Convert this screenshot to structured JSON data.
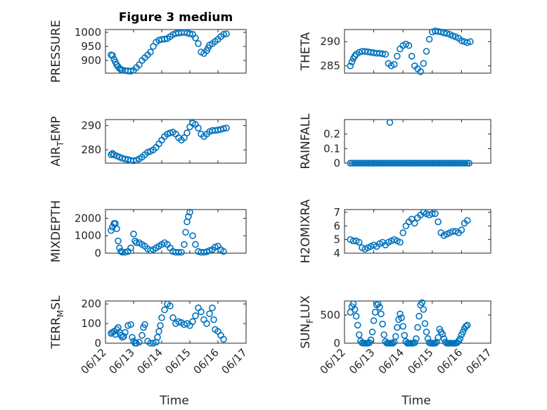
{
  "colors": {
    "marker": "#0072bd"
  },
  "xaxis": {
    "ticks": [
      {
        "t": 0,
        "label": "06/12"
      },
      {
        "t": 1,
        "label": "06/13"
      },
      {
        "t": 2,
        "label": "06/14"
      },
      {
        "t": 3,
        "label": "06/15"
      },
      {
        "t": 4,
        "label": "06/16"
      },
      {
        "t": 5,
        "label": "06/17"
      }
    ],
    "range": [
      0,
      5
    ]
  },
  "chart_data": [
    {
      "type": "scatter",
      "title": "Figure 3 medium",
      "ylabel": "PRESSURE",
      "ylabel_parts": [
        {
          "t": "PRESSURE"
        }
      ],
      "xlabel": "",
      "ylim": [
        855,
        1010
      ],
      "yticks": [
        900,
        950,
        1000
      ],
      "grid": true,
      "x": [
        0.2,
        0.25,
        0.3,
        0.35,
        0.4,
        0.45,
        0.5,
        0.55,
        0.6,
        0.7,
        0.8,
        0.9,
        1.0,
        1.1,
        1.2,
        1.3,
        1.4,
        1.5,
        1.6,
        1.7,
        1.8,
        1.9,
        2.0,
        2.1,
        2.2,
        2.3,
        2.4,
        2.5,
        2.6,
        2.7,
        2.8,
        2.9,
        3.0,
        3.1,
        3.2,
        3.3,
        3.4,
        3.5,
        3.6,
        3.65,
        3.7,
        3.8,
        3.9,
        4.0,
        4.1,
        4.2,
        4.3
      ],
      "y": [
        920,
        918,
        905,
        895,
        885,
        878,
        872,
        868,
        866,
        864,
        863,
        862,
        865,
        875,
        885,
        900,
        910,
        920,
        930,
        950,
        965,
        972,
        975,
        976,
        978,
        985,
        992,
        996,
        998,
        999,
        1000,
        998,
        995,
        993,
        980,
        960,
        930,
        925,
        935,
        945,
        955,
        960,
        968,
        975,
        985,
        993,
        995
      ]
    },
    {
      "type": "scatter",
      "title": "",
      "ylabel": "THETA",
      "ylabel_parts": [
        {
          "t": "THETA"
        }
      ],
      "xlabel": "",
      "ylim": [
        283.5,
        292.5
      ],
      "yticks": [
        285,
        290
      ],
      "grid": true,
      "x": [
        0.2,
        0.25,
        0.3,
        0.35,
        0.4,
        0.5,
        0.6,
        0.7,
        0.8,
        0.9,
        1.0,
        1.1,
        1.2,
        1.3,
        1.4,
        1.5,
        1.6,
        1.7,
        1.8,
        1.9,
        2.0,
        2.1,
        2.2,
        2.3,
        2.4,
        2.5,
        2.6,
        2.7,
        2.8,
        2.9,
        3.0,
        3.1,
        3.2,
        3.3,
        3.4,
        3.5,
        3.6,
        3.7,
        3.8,
        3.9,
        4.0,
        4.1,
        4.2,
        4.3
      ],
      "y": [
        285,
        285.8,
        286.5,
        287,
        287.4,
        287.8,
        288,
        288,
        287.9,
        287.8,
        287.7,
        287.6,
        287.6,
        287.5,
        287.4,
        285.5,
        285,
        285.3,
        287,
        288.5,
        289.2,
        289.5,
        289.2,
        287,
        285,
        284.4,
        283.8,
        285.5,
        288,
        290.5,
        292,
        292.2,
        292.1,
        292,
        291.8,
        291.7,
        291.5,
        291.2,
        291,
        290.7,
        290.2,
        290,
        289.8,
        290
      ]
    },
    {
      "type": "scatter",
      "title": "",
      "ylabel": "AIR_TEMP",
      "ylabel_parts": [
        {
          "t": "AIR"
        },
        {
          "t": "T",
          "sub": true
        },
        {
          "t": "EMP"
        }
      ],
      "xlabel": "",
      "ylim": [
        274.5,
        292.5
      ],
      "yticks": [
        280,
        290
      ],
      "grid": true,
      "x": [
        0.2,
        0.25,
        0.3,
        0.4,
        0.5,
        0.6,
        0.7,
        0.8,
        0.9,
        1.0,
        1.1,
        1.2,
        1.3,
        1.4,
        1.5,
        1.6,
        1.7,
        1.8,
        1.9,
        2.0,
        2.1,
        2.2,
        2.3,
        2.4,
        2.5,
        2.6,
        2.7,
        2.8,
        2.9,
        3.0,
        3.1,
        3.2,
        3.3,
        3.4,
        3.5,
        3.6,
        3.7,
        3.8,
        3.9,
        4.0,
        4.1,
        4.2,
        4.3
      ],
      "y": [
        278,
        278.5,
        278,
        277.5,
        277,
        276.5,
        276.2,
        276,
        275.6,
        275.5,
        275.7,
        276.3,
        277,
        278,
        279,
        279.4,
        280,
        281,
        282.5,
        284,
        285.5,
        286.5,
        287,
        287.3,
        286.5,
        285,
        284,
        285,
        287,
        289.5,
        291,
        290.5,
        289,
        286.5,
        285.5,
        286.5,
        287.5,
        288,
        288,
        288.2,
        288.4,
        288.8,
        289
      ]
    },
    {
      "type": "scatter",
      "title": "",
      "ylabel": "RAINFALL",
      "ylabel_parts": [
        {
          "t": "RAINFALL"
        }
      ],
      "xlabel": "",
      "ylim": [
        0,
        0.3
      ],
      "yticks": [
        0,
        0.1,
        0.2
      ],
      "grid": true,
      "x": [
        0.2,
        0.27,
        0.34,
        0.41,
        0.48,
        0.55,
        0.62,
        0.69,
        0.76,
        0.83,
        0.9,
        0.97,
        1.04,
        1.11,
        1.18,
        1.25,
        1.32,
        1.39,
        1.46,
        1.53,
        1.6,
        1.67,
        1.74,
        1.81,
        1.88,
        1.95,
        2.02,
        2.09,
        2.16,
        2.23,
        2.3,
        2.37,
        2.44,
        2.51,
        2.58,
        2.65,
        2.72,
        2.79,
        2.86,
        2.93,
        3.0,
        3.07,
        3.14,
        3.21,
        3.28,
        3.35,
        3.42,
        3.49,
        3.56,
        3.63,
        3.7,
        3.77,
        3.84,
        3.91,
        3.98,
        4.05,
        4.12,
        4.19,
        4.26,
        1.55
      ],
      "y": [
        0,
        0,
        0,
        0,
        0,
        0,
        0,
        0,
        0,
        0,
        0,
        0,
        0,
        0,
        0,
        0,
        0,
        0,
        0,
        0,
        0,
        0,
        0,
        0,
        0,
        0,
        0,
        0,
        0,
        0,
        0,
        0,
        0,
        0,
        0,
        0,
        0,
        0,
        0,
        0,
        0,
        0,
        0,
        0,
        0,
        0,
        0,
        0,
        0,
        0,
        0,
        0,
        0,
        0,
        0,
        0,
        0,
        0,
        0,
        0.28
      ]
    },
    {
      "type": "scatter",
      "title": "",
      "ylabel": "MIXDEPTH",
      "ylabel_parts": [
        {
          "t": "MIXDEPTH"
        }
      ],
      "xlabel": "",
      "ylim": [
        0,
        2500
      ],
      "yticks": [
        0,
        1000,
        2000
      ],
      "grid": true,
      "x": [
        0.2,
        0.25,
        0.3,
        0.35,
        0.4,
        0.45,
        0.5,
        0.55,
        0.6,
        0.7,
        0.8,
        0.9,
        1.0,
        1.05,
        1.1,
        1.2,
        1.3,
        1.4,
        1.5,
        1.6,
        1.7,
        1.8,
        1.9,
        2.0,
        2.1,
        2.2,
        2.3,
        2.4,
        2.5,
        2.6,
        2.7,
        2.8,
        2.85,
        2.9,
        2.95,
        3.0,
        3.1,
        3.2,
        3.3,
        3.4,
        3.5,
        3.6,
        3.7,
        3.8,
        3.9,
        4.0,
        4.1,
        4.2
      ],
      "y": [
        1300,
        1500,
        1700,
        1700,
        1400,
        700,
        300,
        100,
        50,
        50,
        100,
        300,
        1100,
        700,
        600,
        600,
        500,
        400,
        250,
        150,
        200,
        300,
        400,
        500,
        600,
        500,
        300,
        100,
        50,
        50,
        50,
        500,
        1200,
        1800,
        2100,
        2350,
        1000,
        500,
        100,
        50,
        50,
        80,
        150,
        200,
        350,
        400,
        200,
        100
      ]
    },
    {
      "type": "scatter",
      "title": "",
      "ylabel": "H2OMIXRA",
      "ylabel_parts": [
        {
          "t": "H2OMIXRA"
        }
      ],
      "xlabel": "",
      "ylim": [
        4,
        7.2
      ],
      "yticks": [
        4,
        5,
        6,
        7
      ],
      "grid": true,
      "x": [
        0.2,
        0.3,
        0.4,
        0.5,
        0.6,
        0.7,
        0.8,
        0.9,
        1.0,
        1.1,
        1.2,
        1.3,
        1.4,
        1.5,
        1.6,
        1.7,
        1.8,
        1.9,
        2.0,
        2.1,
        2.2,
        2.3,
        2.4,
        2.5,
        2.6,
        2.7,
        2.8,
        2.9,
        3.0,
        3.1,
        3.2,
        3.3,
        3.4,
        3.5,
        3.6,
        3.7,
        3.8,
        3.9,
        4.0,
        4.1,
        4.2
      ],
      "y": [
        5,
        4.9,
        4.9,
        4.8,
        4.4,
        4.3,
        4.4,
        4.5,
        4.6,
        4.5,
        4.7,
        4.8,
        4.6,
        4.8,
        4.9,
        5,
        4.9,
        4.8,
        5.5,
        6,
        6.3,
        6.5,
        6.2,
        6.6,
        6.8,
        7,
        6.9,
        6.8,
        6.9,
        6.9,
        6.3,
        5.5,
        5.3,
        5.4,
        5.5,
        5.6,
        5.6,
        5.5,
        5.7,
        6.2,
        6.4
      ]
    },
    {
      "type": "scatter",
      "title": "",
      "ylabel": "TERR_MSL",
      "ylabel_parts": [
        {
          "t": "TERR"
        },
        {
          "t": "M",
          "sub": true
        },
        {
          "t": "SL"
        }
      ],
      "xlabel": "Time",
      "ylim": [
        0,
        215
      ],
      "yticks": [
        0,
        100,
        200
      ],
      "grid": true,
      "x": [
        0.2,
        0.25,
        0.3,
        0.35,
        0.4,
        0.45,
        0.5,
        0.55,
        0.6,
        0.65,
        0.7,
        0.8,
        0.9,
        0.95,
        1.0,
        1.05,
        1.1,
        1.2,
        1.3,
        1.35,
        1.4,
        1.5,
        1.6,
        1.7,
        1.8,
        1.85,
        1.9,
        1.95,
        2.0,
        2.1,
        2.2,
        2.3,
        2.4,
        2.5,
        2.6,
        2.7,
        2.8,
        2.9,
        3.0,
        3.1,
        3.2,
        3.3,
        3.4,
        3.5,
        3.6,
        3.7,
        3.8,
        3.85,
        3.9,
        4.0,
        4.1,
        4.2
      ],
      "y": [
        50,
        55,
        60,
        45,
        70,
        80,
        55,
        40,
        30,
        35,
        55,
        90,
        95,
        30,
        10,
        0,
        0,
        5,
        40,
        80,
        95,
        10,
        0,
        0,
        5,
        30,
        60,
        90,
        130,
        170,
        200,
        190,
        130,
        100,
        110,
        105,
        95,
        100,
        90,
        110,
        140,
        180,
        160,
        120,
        100,
        150,
        180,
        120,
        70,
        60,
        40,
        20
      ]
    },
    {
      "type": "scatter",
      "title": "",
      "ylabel": "SUN_FLUX",
      "ylabel_parts": [
        {
          "t": "SUN"
        },
        {
          "t": "F",
          "sub": true
        },
        {
          "t": "LUX"
        }
      ],
      "xlabel": "Time",
      "ylim": [
        0,
        750
      ],
      "yticks": [
        0,
        500
      ],
      "grid": true,
      "x": [
        0.2,
        0.25,
        0.3,
        0.35,
        0.4,
        0.45,
        0.5,
        0.55,
        0.6,
        0.65,
        0.7,
        0.75,
        0.8,
        0.85,
        0.9,
        0.95,
        1.0,
        1.05,
        1.1,
        1.15,
        1.2,
        1.25,
        1.3,
        1.35,
        1.4,
        1.45,
        1.5,
        1.55,
        1.6,
        1.65,
        1.7,
        1.75,
        1.8,
        1.85,
        1.9,
        1.95,
        2.0,
        2.05,
        2.1,
        2.15,
        2.2,
        2.25,
        2.3,
        2.35,
        2.4,
        2.45,
        2.5,
        2.55,
        2.6,
        2.65,
        2.7,
        2.75,
        2.8,
        2.85,
        2.9,
        2.95,
        3.0,
        3.05,
        3.1,
        3.15,
        3.2,
        3.25,
        3.3,
        3.35,
        3.4,
        3.45,
        3.5,
        3.55,
        3.6,
        3.65,
        3.7,
        3.75,
        3.8,
        3.85,
        3.9,
        3.95,
        4.0,
        4.05,
        4.1,
        4.15,
        4.2
      ],
      "y": [
        550,
        650,
        700,
        600,
        480,
        320,
        150,
        40,
        5,
        0,
        0,
        0,
        0,
        10,
        60,
        200,
        400,
        550,
        680,
        700,
        640,
        520,
        340,
        150,
        30,
        0,
        0,
        0,
        0,
        0,
        20,
        120,
        280,
        420,
        520,
        450,
        300,
        140,
        30,
        0,
        0,
        0,
        0,
        0,
        10,
        80,
        280,
        480,
        680,
        720,
        600,
        350,
        200,
        80,
        10,
        0,
        0,
        0,
        0,
        20,
        100,
        250,
        200,
        160,
        80,
        20,
        0,
        0,
        0,
        0,
        0,
        0,
        0,
        10,
        40,
        80,
        150,
        200,
        260,
        300,
        320
      ]
    }
  ]
}
